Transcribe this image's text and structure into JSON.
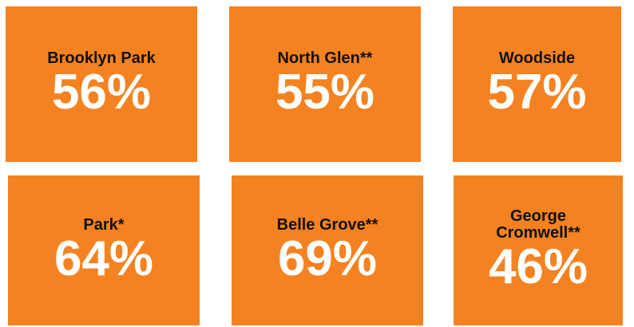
{
  "tiles": [
    {
      "name": "Brooklyn Park",
      "value": "56%"
    },
    {
      "name": "North Glen**",
      "value": "55%"
    },
    {
      "name": "Woodside",
      "value": "57%"
    },
    {
      "name": "Park*",
      "value": "64%"
    },
    {
      "name": "Belle Grove**",
      "value": "69%"
    },
    {
      "name": "George Cromwell**",
      "value": "46%"
    }
  ]
}
